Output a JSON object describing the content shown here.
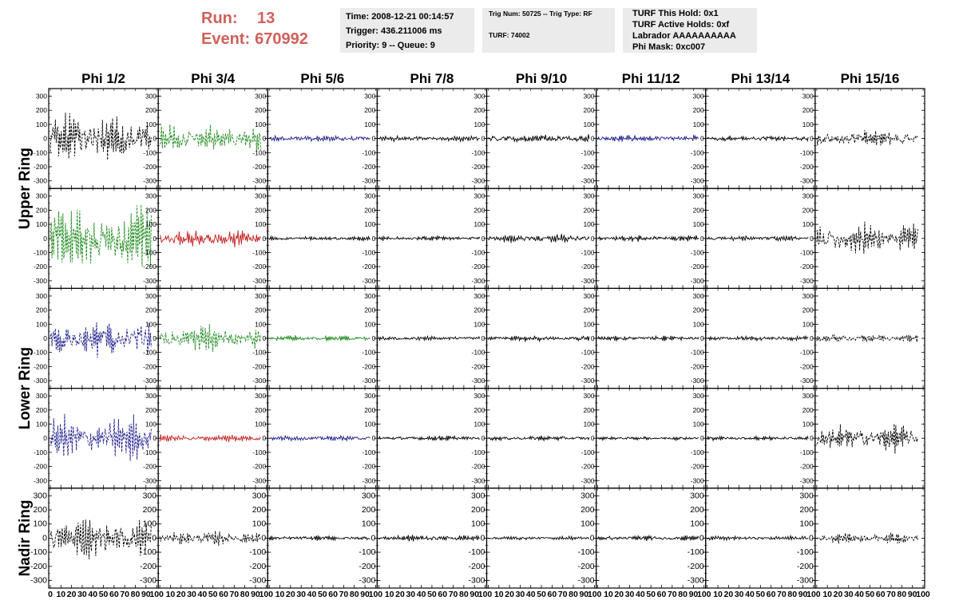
{
  "header": {
    "run_label": "Run:",
    "run_value": "13",
    "event_label": "Event:",
    "event_value": "670992",
    "time_text": "Time: 2008-12-21 00:14:57",
    "trigger_text": "Trigger: 436.211006 ms",
    "priority_text": "Priority: 9 -- Queue: 9",
    "trig_num_text": "Trig Num: 50725 -- Trig Type: RF",
    "turf_text": "TURF: 74002",
    "turf_hold_text": "TURF This Hold: 0x1",
    "turf_active_text": "TURF Active Holds: 0xf",
    "labrador_text": "Labrador AAAAAAAAAA",
    "phi_mask_text": "Phi Mask: 0xc007"
  },
  "chart_data": {
    "type": "line",
    "columns": [
      "Phi 1/2",
      "Phi 3/4",
      "Phi 5/6",
      "Phi 7/8",
      "Phi 9/10",
      "Phi 11/12",
      "Phi 13/14",
      "Phi 15/16"
    ],
    "ring_labels": [
      "Upper Ring",
      "Lower Ring",
      "Nadir Ring"
    ],
    "rows": 5,
    "ylim": [
      -320,
      320
    ],
    "xlim": [
      0,
      100
    ],
    "yticks": [
      -300,
      -200,
      -100,
      0,
      100,
      200,
      300
    ],
    "xticks": [
      0,
      10,
      20,
      30,
      40,
      50,
      60,
      70,
      80,
      90,
      100
    ],
    "colors": {
      "black": "#000000",
      "green": "#1e8a1e",
      "blue": "#1c1c8c",
      "red": "#c42020"
    },
    "panels": [
      [
        {
          "color": "black",
          "amplitude": 200,
          "style": "dashed"
        },
        {
          "color": "green",
          "amplitude": 110,
          "style": "dashed"
        },
        {
          "color": "blue",
          "amplitude": 28,
          "style": "solid"
        },
        {
          "color": "black",
          "amplitude": 22,
          "style": "solid"
        },
        {
          "color": "black",
          "amplitude": 35,
          "style": "solid"
        },
        {
          "color": "blue",
          "amplitude": 30,
          "style": "solid"
        },
        {
          "color": "black",
          "amplitude": 25,
          "style": "solid"
        },
        {
          "color": "black",
          "amplitude": 70,
          "style": "dashed"
        }
      ],
      [
        {
          "color": "green",
          "amplitude": 270,
          "style": "dashed"
        },
        {
          "color": "red",
          "amplitude": 70,
          "style": "solid"
        },
        {
          "color": "black",
          "amplitude": 18,
          "style": "solid"
        },
        {
          "color": "black",
          "amplitude": 20,
          "style": "solid"
        },
        {
          "color": "black",
          "amplitude": 35,
          "style": "solid"
        },
        {
          "color": "black",
          "amplitude": 25,
          "style": "solid"
        },
        {
          "color": "black",
          "amplitude": 22,
          "style": "solid"
        },
        {
          "color": "black",
          "amplitude": 140,
          "style": "dashed"
        }
      ],
      [
        {
          "color": "blue",
          "amplitude": 150,
          "style": "dashed"
        },
        {
          "color": "green",
          "amplitude": 110,
          "style": "dashed"
        },
        {
          "color": "green",
          "amplitude": 25,
          "style": "solid"
        },
        {
          "color": "black",
          "amplitude": 20,
          "style": "solid"
        },
        {
          "color": "black",
          "amplitude": 25,
          "style": "solid"
        },
        {
          "color": "black",
          "amplitude": 22,
          "style": "solid"
        },
        {
          "color": "black",
          "amplitude": 20,
          "style": "solid"
        },
        {
          "color": "black",
          "amplitude": 35,
          "style": "dashed"
        }
      ],
      [
        {
          "color": "blue",
          "amplitude": 190,
          "style": "dashed"
        },
        {
          "color": "red",
          "amplitude": 30,
          "style": "solid"
        },
        {
          "color": "blue",
          "amplitude": 22,
          "style": "solid"
        },
        {
          "color": "black",
          "amplitude": 20,
          "style": "solid"
        },
        {
          "color": "black",
          "amplitude": 22,
          "style": "solid"
        },
        {
          "color": "black",
          "amplitude": 15,
          "style": "solid"
        },
        {
          "color": "black",
          "amplitude": 18,
          "style": "solid"
        },
        {
          "color": "black",
          "amplitude": 110,
          "style": "dashed"
        }
      ],
      [
        {
          "color": "black",
          "amplitude": 170,
          "style": "dashed"
        },
        {
          "color": "black",
          "amplitude": 60,
          "style": "dashed"
        },
        {
          "color": "black",
          "amplitude": 20,
          "style": "solid"
        },
        {
          "color": "black",
          "amplitude": 25,
          "style": "solid"
        },
        {
          "color": "black",
          "amplitude": 15,
          "style": "solid"
        },
        {
          "color": "black",
          "amplitude": 22,
          "style": "solid"
        },
        {
          "color": "black",
          "amplitude": 18,
          "style": "solid"
        },
        {
          "color": "black",
          "amplitude": 45,
          "style": "dashed"
        }
      ]
    ]
  }
}
